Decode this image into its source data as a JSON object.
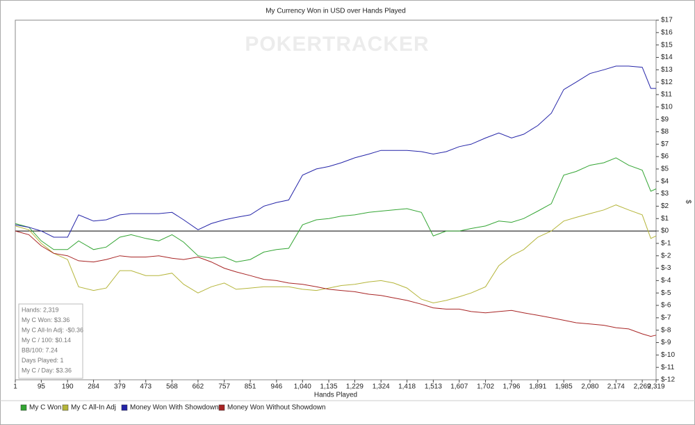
{
  "chart_data": {
    "type": "line",
    "title": "My Currency Won in USD over Hands Played",
    "watermark": "POKERTRACKER",
    "xlabel": "Hands Played",
    "ylabel": "$",
    "x": [
      1,
      50,
      95,
      140,
      190,
      230,
      284,
      330,
      379,
      420,
      473,
      520,
      568,
      610,
      662,
      710,
      757,
      800,
      851,
      900,
      946,
      990,
      1040,
      1090,
      1135,
      1180,
      1229,
      1280,
      1324,
      1370,
      1418,
      1470,
      1513,
      1560,
      1607,
      1650,
      1702,
      1750,
      1796,
      1840,
      1891,
      1940,
      1985,
      2030,
      2080,
      2130,
      2174,
      2220,
      2269,
      2300,
      2319
    ],
    "series": [
      {
        "name": "My C Won",
        "color": "#33a533",
        "values": [
          0.6,
          0.3,
          -0.8,
          -1.5,
          -1.5,
          -0.8,
          -1.5,
          -1.3,
          -0.5,
          -0.3,
          -0.6,
          -0.8,
          -0.3,
          -0.9,
          -2.0,
          -2.2,
          -2.1,
          -2.5,
          -2.3,
          -1.7,
          -1.5,
          -1.4,
          0.5,
          0.9,
          1.0,
          1.2,
          1.3,
          1.5,
          1.6,
          1.7,
          1.8,
          1.5,
          -0.4,
          0.0,
          0.0,
          0.2,
          0.4,
          0.8,
          0.7,
          1.0,
          1.6,
          2.2,
          4.5,
          4.8,
          5.3,
          5.5,
          5.9,
          5.3,
          4.9,
          3.2,
          3.4
        ]
      },
      {
        "name": "My C All-In Adj",
        "color": "#b5b53a",
        "values": [
          0.4,
          0.1,
          -1.0,
          -1.8,
          -2.3,
          -4.5,
          -4.8,
          -4.6,
          -3.2,
          -3.2,
          -3.6,
          -3.6,
          -3.4,
          -4.3,
          -5.0,
          -4.5,
          -4.2,
          -4.7,
          -4.6,
          -4.5,
          -4.5,
          -4.5,
          -4.7,
          -4.8,
          -4.6,
          -4.4,
          -4.3,
          -4.1,
          -4.0,
          -4.2,
          -4.6,
          -5.5,
          -5.8,
          -5.6,
          -5.3,
          -5.0,
          -4.5,
          -2.8,
          -2.0,
          -1.5,
          -0.5,
          0.0,
          0.8,
          1.1,
          1.4,
          1.7,
          2.1,
          1.7,
          1.3,
          -0.6,
          -0.4
        ]
      },
      {
        "name": "Money Won With Showdown",
        "color": "#2424a8",
        "values": [
          0.5,
          0.3,
          0,
          -0.5,
          -0.5,
          1.3,
          0.8,
          0.9,
          1.3,
          1.4,
          1.4,
          1.4,
          1.5,
          0.9,
          0.1,
          0.6,
          0.9,
          1.1,
          1.3,
          2.0,
          2.3,
          2.5,
          4.5,
          5.0,
          5.2,
          5.5,
          5.9,
          6.2,
          6.5,
          6.5,
          6.5,
          6.4,
          6.2,
          6.4,
          6.8,
          7.0,
          7.5,
          7.9,
          7.5,
          7.8,
          8.5,
          9.5,
          11.4,
          12.0,
          12.7,
          13.0,
          13.3,
          13.3,
          13.2,
          11.5,
          11.5
        ]
      },
      {
        "name": "Money Won Without Showdown",
        "color": "#a82424",
        "values": [
          0,
          -0.3,
          -1.2,
          -1.8,
          -2.0,
          -2.4,
          -2.5,
          -2.3,
          -2.0,
          -2.1,
          -2.1,
          -2.0,
          -2.2,
          -2.3,
          -2.1,
          -2.5,
          -3.0,
          -3.3,
          -3.6,
          -3.9,
          -4.0,
          -4.2,
          -4.3,
          -4.5,
          -4.7,
          -4.8,
          -4.9,
          -5.1,
          -5.2,
          -5.4,
          -5.6,
          -5.9,
          -6.2,
          -6.3,
          -6.3,
          -6.5,
          -6.6,
          -6.5,
          -6.4,
          -6.6,
          -6.8,
          -7.0,
          -7.2,
          -7.4,
          -7.5,
          -7.6,
          -7.8,
          -7.9,
          -8.3,
          -8.5,
          -8.4
        ]
      }
    ],
    "xlim": [
      1,
      2319
    ],
    "xticks": [
      1,
      95,
      190,
      284,
      379,
      473,
      568,
      662,
      757,
      851,
      946,
      {
        "value": 1040,
        "label": "1,040"
      },
      {
        "value": 1135,
        "label": "1,135"
      },
      {
        "value": 1229,
        "label": "1,229"
      },
      {
        "value": 1324,
        "label": "1,324"
      },
      {
        "value": 1418,
        "label": "1,418"
      },
      {
        "value": 1513,
        "label": "1,513"
      },
      {
        "value": 1607,
        "label": "1,607"
      },
      {
        "value": 1702,
        "label": "1,702"
      },
      {
        "value": 1796,
        "label": "1,796"
      },
      {
        "value": 1891,
        "label": "1,891"
      },
      {
        "value": 1985,
        "label": "1,985"
      },
      {
        "value": 2080,
        "label": "2,080"
      },
      {
        "value": 2174,
        "label": "2,174"
      },
      {
        "value": 2269,
        "label": "2,269"
      },
      {
        "value": 2319,
        "label": "2,319"
      }
    ],
    "ylim": [
      -12,
      17
    ],
    "yticks": [
      {
        "value": 17,
        "label": "$17"
      },
      {
        "value": 16,
        "label": "$16"
      },
      {
        "value": 15,
        "label": "$15"
      },
      {
        "value": 14,
        "label": "$14"
      },
      {
        "value": 13,
        "label": "$13"
      },
      {
        "value": 12,
        "label": "$12"
      },
      {
        "value": 11,
        "label": "$11"
      },
      {
        "value": 10,
        "label": "$10"
      },
      {
        "value": 9,
        "label": "$9"
      },
      {
        "value": 8,
        "label": "$8"
      },
      {
        "value": 7,
        "label": "$7"
      },
      {
        "value": 6,
        "label": "$6"
      },
      {
        "value": 5,
        "label": "$5"
      },
      {
        "value": 4,
        "label": "$4"
      },
      {
        "value": 3,
        "label": "$3"
      },
      {
        "value": 2,
        "label": "$2"
      },
      {
        "value": 1,
        "label": "$1"
      },
      {
        "value": 0,
        "label": "$0"
      },
      {
        "value": -1,
        "label": "$-1"
      },
      {
        "value": -2,
        "label": "$-2"
      },
      {
        "value": -3,
        "label": "$-3"
      },
      {
        "value": -4,
        "label": "$-4"
      },
      {
        "value": -5,
        "label": "$-5"
      },
      {
        "value": -6,
        "label": "$-6"
      },
      {
        "value": -7,
        "label": "$-7"
      },
      {
        "value": -8,
        "label": "$-8"
      },
      {
        "value": -9,
        "label": "$-9"
      },
      {
        "value": -10,
        "label": "$-10"
      },
      {
        "value": -11,
        "label": "$-11"
      },
      {
        "value": -12,
        "label": "$-12"
      }
    ],
    "grid": false,
    "stats": [
      "Hands: 2,319",
      "My C Won: $3.36",
      "My C All-In Adj: -$0.36",
      "My C / 100: $0.14",
      "BB/100: 7.24",
      "Days Played: 1",
      "My C / Day: $3.36"
    ]
  }
}
